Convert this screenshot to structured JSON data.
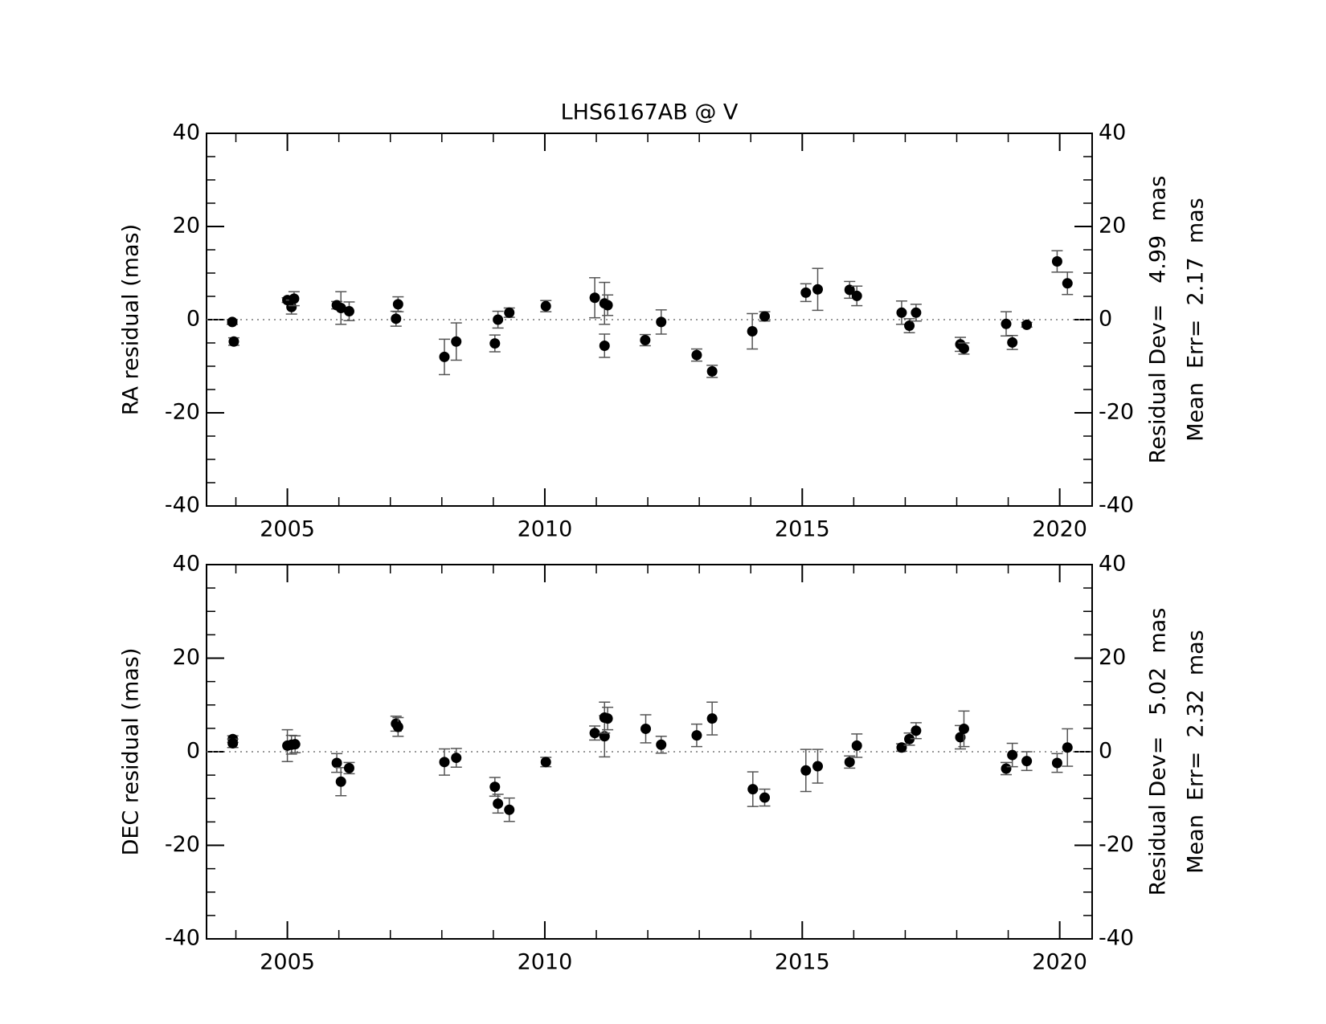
{
  "chart_data": [
    {
      "type": "scatter",
      "title": "LHS6167AB @ V",
      "ylabel": "RA residual (mas)",
      "annotations": [
        "Residual Dev=   4.99  mas",
        "Mean  Err=  2.17  mas"
      ],
      "color": "#000000",
      "error_color": "#555555",
      "xlim": [
        2003.43,
        2020.63
      ],
      "xticks": [
        2005,
        2010,
        2015,
        2020
      ],
      "ylim": [
        -40,
        40
      ],
      "yticks": [
        -40,
        -20,
        0,
        20,
        40
      ],
      "x": [
        2003.93,
        2003.96,
        2005.0,
        2005.08,
        2005.13,
        2005.96,
        2006.04,
        2006.2,
        2007.11,
        2007.15,
        2008.05,
        2008.28,
        2009.03,
        2009.09,
        2009.31,
        2010.02,
        2010.97,
        2011.16,
        2011.22,
        2011.16,
        2011.95,
        2012.26,
        2012.95,
        2013.25,
        2014.03,
        2014.27,
        2015.07,
        2015.3,
        2015.92,
        2016.06,
        2016.93,
        2017.08,
        2017.21,
        2018.07,
        2018.14,
        2018.96,
        2019.08,
        2019.36,
        2019.95,
        2020.15
      ],
      "values": [
        -0.5,
        -4.7,
        4.2,
        2.7,
        4.5,
        3.1,
        2.5,
        1.8,
        0.2,
        3.3,
        -8.0,
        -4.7,
        -5.1,
        0.0,
        1.5,
        2.9,
        4.7,
        3.5,
        3.1,
        -5.6,
        -4.4,
        -0.5,
        -7.6,
        -11.1,
        -2.5,
        0.7,
        5.8,
        6.5,
        6.4,
        5.1,
        1.5,
        -1.3,
        1.5,
        -5.3,
        -6.2,
        -0.9,
        -4.9,
        -1.1,
        12.5,
        7.8
      ],
      "errors": [
        0.5,
        0.8,
        0.5,
        1.5,
        1.5,
        0.8,
        3.5,
        2.0,
        1.6,
        1.6,
        3.8,
        4.0,
        1.8,
        1.8,
        1.0,
        1.2,
        4.3,
        4.5,
        2.2,
        2.5,
        1.2,
        2.6,
        1.3,
        1.3,
        3.8,
        1.0,
        1.9,
        4.5,
        1.8,
        2.1,
        2.5,
        1.5,
        1.8,
        1.5,
        1.2,
        2.6,
        1.5,
        0.5,
        2.3,
        2.4
      ]
    },
    {
      "type": "scatter",
      "ylabel": "DEC residual (mas)",
      "annotations": [
        "Residual Dev=   5.02  mas",
        "Mean  Err=  2.32  mas"
      ],
      "color": "#000000",
      "error_color": "#555555",
      "xlim": [
        2003.43,
        2020.63
      ],
      "xticks": [
        2005,
        2010,
        2015,
        2020
      ],
      "ylim": [
        -40,
        40
      ],
      "yticks": [
        -40,
        -20,
        0,
        20,
        40
      ],
      "x": [
        2003.94,
        2003.94,
        2005.0,
        2005.08,
        2005.15,
        2005.96,
        2006.04,
        2006.2,
        2007.11,
        2007.15,
        2008.05,
        2008.28,
        2009.03,
        2009.09,
        2009.31,
        2010.02,
        2010.97,
        2011.16,
        2011.16,
        2011.22,
        2011.96,
        2012.26,
        2012.95,
        2013.25,
        2014.04,
        2014.27,
        2015.07,
        2015.3,
        2015.92,
        2016.06,
        2016.93,
        2017.08,
        2017.21,
        2018.07,
        2018.14,
        2018.96,
        2019.08,
        2019.36,
        2019.95,
        2020.15
      ],
      "values": [
        2.7,
        1.8,
        1.3,
        1.5,
        1.6,
        -2.4,
        -6.4,
        -3.5,
        6.0,
        5.3,
        -2.2,
        -1.3,
        -7.5,
        -11.1,
        -12.4,
        -2.2,
        4.0,
        3.3,
        7.3,
        7.1,
        4.9,
        1.5,
        3.5,
        7.1,
        -8.0,
        -9.8,
        -4.0,
        -3.1,
        -2.2,
        1.3,
        0.9,
        2.7,
        4.5,
        3.1,
        4.9,
        -3.6,
        -0.7,
        -2.0,
        -2.4,
        0.9
      ],
      "errors": [
        0.7,
        0.9,
        3.4,
        2.0,
        1.8,
        2.0,
        3.0,
        1.2,
        1.6,
        2.0,
        2.8,
        2.0,
        2.0,
        2.0,
        2.5,
        1.0,
        1.5,
        4.4,
        3.3,
        2.4,
        3.0,
        1.8,
        2.4,
        3.5,
        3.7,
        1.8,
        4.5,
        3.6,
        1.3,
        2.5,
        0.8,
        1.3,
        1.7,
        2.5,
        3.8,
        1.3,
        2.5,
        2.0,
        2.0,
        4.0
      ]
    }
  ]
}
